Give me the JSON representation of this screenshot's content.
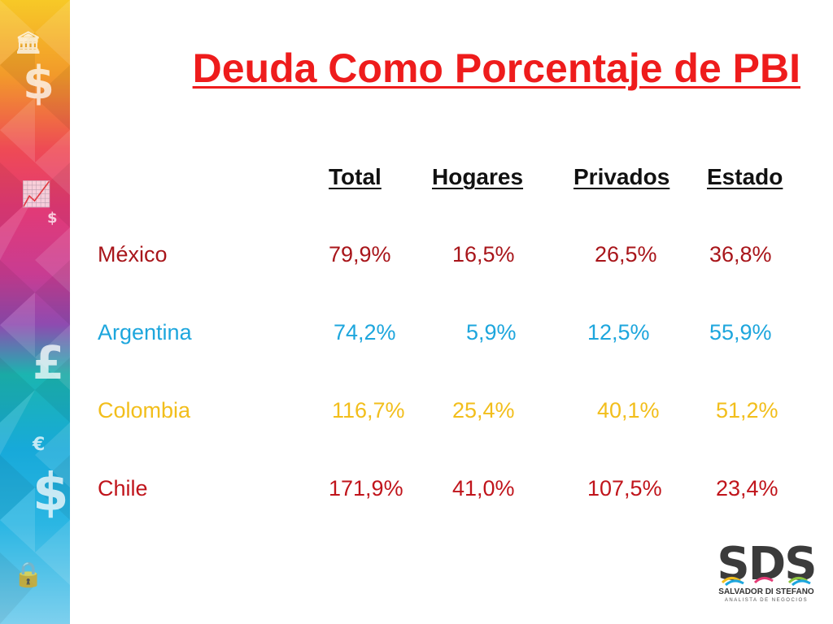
{
  "title": "Deuda Como Porcentaje de PBI",
  "headers": {
    "total": "Total",
    "hogares": "Hogares",
    "privados": "Privados",
    "estado": "Estado"
  },
  "rows": [
    {
      "country": "México",
      "total": "79,9%",
      "hogares": "16,5%",
      "privados": "26,5%",
      "estado": "36,8%",
      "color": "#a8151a"
    },
    {
      "country": "Argentina",
      "total": "74,2%",
      "hogares": "5,9%",
      "privados": "12,5%",
      "estado": "55,9%",
      "color": "#1da6dd"
    },
    {
      "country": "Colombia",
      "total": "116,7%",
      "hogares": "25,4%",
      "privados": "40,1%",
      "estado": "51,2%",
      "color": "#f2be1b"
    },
    {
      "country": "Chile",
      "total": "171,9%",
      "hogares": "41,0%",
      "privados": "107,5%",
      "estado": "23,4%",
      "color": "#c0141b"
    }
  ],
  "logo": {
    "main": "SDS",
    "subtitle": "SALVADOR DI STEFANO",
    "tagline": "ANALISTA DE NEGOCIOS"
  },
  "sidebar_icons": [
    "bank-icon",
    "dollar-icon",
    "chart-growth-icon",
    "coins-icon",
    "pound-icon",
    "euro-icon",
    "dollar-large-icon",
    "lock-dollar-icon"
  ]
}
